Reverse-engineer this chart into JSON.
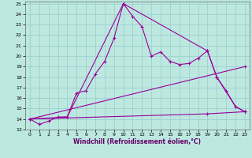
{
  "xlabel": "Windchill (Refroidissement éolien,°C)",
  "bg_color": "#bce8e0",
  "grid_color": "#99cccc",
  "line_color": "#990099",
  "xlim": [
    -0.5,
    23.5
  ],
  "ylim": [
    13,
    25.2
  ],
  "yticks": [
    13,
    14,
    15,
    16,
    17,
    18,
    19,
    20,
    21,
    22,
    23,
    24,
    25
  ],
  "xticks": [
    0,
    1,
    2,
    3,
    4,
    5,
    6,
    7,
    8,
    9,
    10,
    11,
    12,
    13,
    14,
    15,
    16,
    17,
    18,
    19,
    20,
    21,
    22,
    23
  ],
  "series1_x": [
    0,
    1,
    2,
    3,
    4,
    5,
    6,
    7,
    8,
    9,
    10,
    11,
    12,
    13,
    14,
    15,
    16,
    17,
    18,
    19,
    20,
    21,
    22,
    23
  ],
  "series1_y": [
    14.0,
    13.5,
    13.8,
    14.2,
    14.2,
    16.5,
    16.7,
    18.3,
    19.5,
    21.7,
    25.0,
    23.8,
    22.8,
    20.0,
    20.4,
    19.5,
    19.2,
    19.3,
    19.8,
    20.5,
    18.0,
    16.7,
    15.2,
    14.7
  ],
  "series2_x": [
    0,
    4,
    10,
    19,
    20,
    22,
    23
  ],
  "series2_y": [
    14.0,
    14.2,
    25.0,
    20.5,
    18.0,
    15.2,
    14.7
  ],
  "series3_x": [
    0,
    23
  ],
  "series3_y": [
    14.0,
    19.0
  ],
  "series4_x": [
    0,
    19,
    23
  ],
  "series4_y": [
    14.0,
    14.5,
    14.7
  ]
}
